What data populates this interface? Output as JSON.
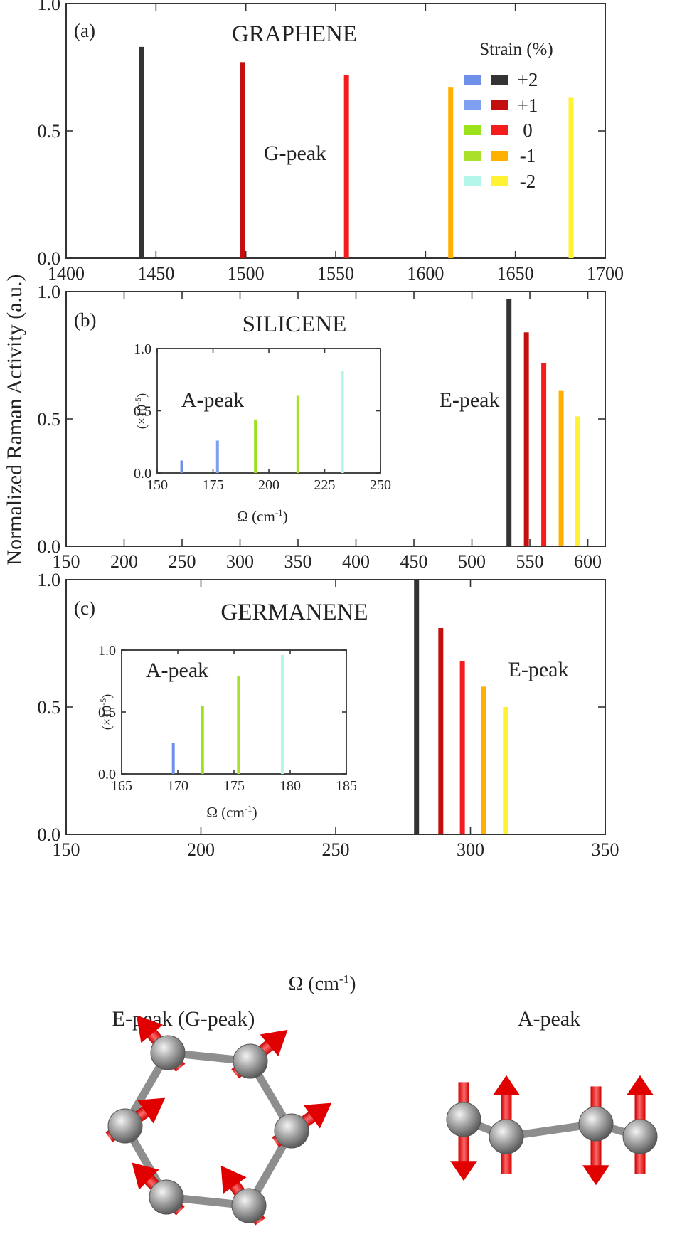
{
  "figure": {
    "ylabel": "Normalized Raman Activity (a.u.)",
    "xlabel_main": "Ω (cm",
    "xlabel_sup": "-1",
    "xlabel_close": ")",
    "scale_label": "(×10",
    "scale_sup": "-5",
    "scale_close": ")"
  },
  "legend": {
    "title": "Strain (%)",
    "labels": [
      "+2",
      "+1",
      "0",
      "-1",
      "-2"
    ],
    "colors_left": [
      "#6f8fe8",
      "#7f9ff0",
      "#9be21c",
      "#a9e02a",
      "#b4f7ea"
    ],
    "colors_right": [
      "#333333",
      "#c40f0f",
      "#f51c1c",
      "#ffb000",
      "#fff233"
    ]
  },
  "chart_data": [
    {
      "type": "bar",
      "panel": "(a)",
      "title": "GRAPHENE",
      "annotation": "G-peak",
      "xlim": [
        1400,
        1700
      ],
      "ylim": [
        0,
        1
      ],
      "xticks": [
        1400,
        1450,
        1500,
        1550,
        1600,
        1650,
        1700
      ],
      "yticks": [
        "0.0",
        "0.5",
        "1.0"
      ],
      "series": [
        {
          "name": "+2",
          "x": 1442,
          "y": 0.83,
          "color": "#333333"
        },
        {
          "name": "+1",
          "x": 1498,
          "y": 0.77,
          "color": "#c40f0f"
        },
        {
          "name": "0",
          "x": 1556,
          "y": 0.72,
          "color": "#f51c1c"
        },
        {
          "name": "-1",
          "x": 1614,
          "y": 0.67,
          "color": "#ffb000"
        },
        {
          "name": "-2",
          "x": 1681,
          "y": 0.63,
          "color": "#fff233"
        }
      ]
    },
    {
      "type": "bar",
      "panel": "(b)",
      "title": "SILICENE",
      "annotation": "E-peak",
      "xlim": [
        150,
        615
      ],
      "ylim": [
        0,
        1
      ],
      "xticks": [
        150,
        200,
        250,
        300,
        350,
        400,
        450,
        500,
        550,
        600
      ],
      "yticks": [
        "0.0",
        "0.5",
        "1.0"
      ],
      "series": [
        {
          "name": "+2",
          "x": 532,
          "y": 0.97,
          "color": "#333333"
        },
        {
          "name": "+1",
          "x": 547,
          "y": 0.84,
          "color": "#c40f0f"
        },
        {
          "name": "0",
          "x": 562,
          "y": 0.72,
          "color": "#f51c1c"
        },
        {
          "name": "-1",
          "x": 577,
          "y": 0.61,
          "color": "#ffb000"
        },
        {
          "name": "-2",
          "x": 591,
          "y": 0.51,
          "color": "#fff233"
        }
      ],
      "inset": {
        "annotation": "A-peak",
        "xlim": [
          150,
          250
        ],
        "ylim": [
          0,
          1
        ],
        "xticks": [
          150,
          175,
          200,
          225,
          250
        ],
        "yticks": [
          "0.0",
          "0.5",
          "1.0"
        ],
        "series": [
          {
            "name": "+2",
            "x": 161,
            "y": 0.1,
            "color": "#6f8fe8"
          },
          {
            "name": "+1",
            "x": 177,
            "y": 0.26,
            "color": "#7f9ff0"
          },
          {
            "name": "0",
            "x": 194,
            "y": 0.43,
            "color": "#9be21c"
          },
          {
            "name": "-1",
            "x": 213,
            "y": 0.62,
            "color": "#a9e02a"
          },
          {
            "name": "-2",
            "x": 233,
            "y": 0.82,
            "color": "#b4f7ea"
          }
        ]
      }
    },
    {
      "type": "bar",
      "panel": "(c)",
      "title": "GERMANENE",
      "annotation": "E-peak",
      "xlim": [
        150,
        350
      ],
      "ylim": [
        0,
        1
      ],
      "xticks": [
        150,
        200,
        250,
        300,
        350
      ],
      "yticks": [
        "0.0",
        "0.5",
        "1.0"
      ],
      "series": [
        {
          "name": "+2",
          "x": 280,
          "y": 1.0,
          "color": "#333333"
        },
        {
          "name": "+1",
          "x": 289,
          "y": 0.81,
          "color": "#c40f0f"
        },
        {
          "name": "0",
          "x": 297,
          "y": 0.68,
          "color": "#f51c1c"
        },
        {
          "name": "-1",
          "x": 305,
          "y": 0.58,
          "color": "#ffb000"
        },
        {
          "name": "-2",
          "x": 313,
          "y": 0.5,
          "color": "#fff233"
        }
      ],
      "inset": {
        "annotation": "A-peak",
        "xlim": [
          165,
          185
        ],
        "ylim": [
          0,
          1
        ],
        "xticks": [
          165,
          170,
          175,
          180,
          185
        ],
        "yticks": [
          "0.0",
          "0.5",
          "1.0"
        ],
        "series": [
          {
            "name": "+2",
            "x": 169.6,
            "y": 0.25,
            "color": "#6f8fe8"
          },
          {
            "name": "0",
            "x": 172.2,
            "y": 0.55,
            "color": "#9be21c"
          },
          {
            "name": "-1",
            "x": 175.4,
            "y": 0.79,
            "color": "#a9e02a"
          },
          {
            "name": "-2",
            "x": 179.3,
            "y": 0.96,
            "color": "#b4f7ea"
          }
        ]
      }
    }
  ],
  "modes": {
    "e_peak_title": "E-peak (G-peak)",
    "a_peak_title": "A-peak"
  }
}
